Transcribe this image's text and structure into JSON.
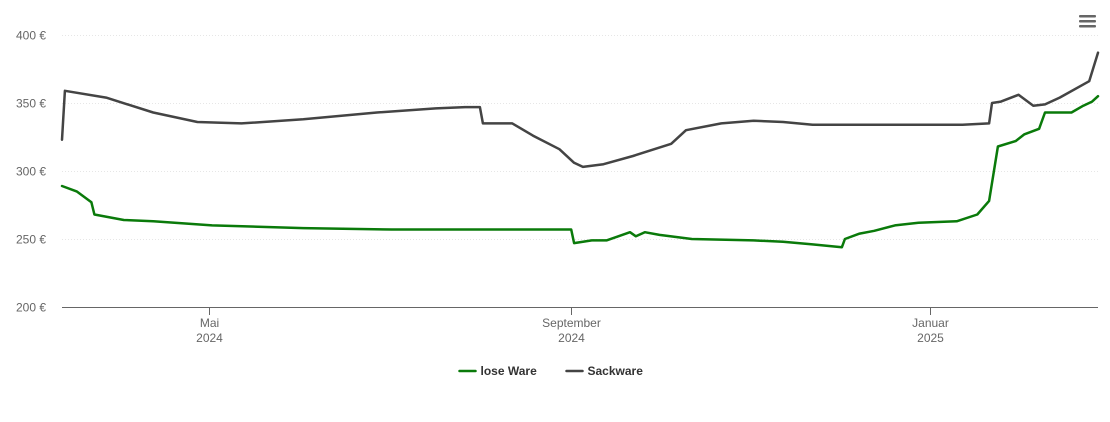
{
  "menu_icon": "hamburger-menu-icon",
  "chart_data": {
    "type": "line",
    "ylim": [
      200,
      400
    ],
    "grid": true,
    "legend_position": "bottom-center",
    "y_ticks": [
      {
        "value": 200,
        "label": "200 €"
      },
      {
        "value": 250,
        "label": "250 €"
      },
      {
        "value": 300,
        "label": "300 €"
      },
      {
        "value": 350,
        "label": "350 €"
      },
      {
        "value": 400,
        "label": "400 €"
      }
    ],
    "x_range": [
      "2024-03-12",
      "2025-02-27"
    ],
    "x_ticks": [
      {
        "date": "2024-05-01",
        "line1": "Mai",
        "line2": "2024"
      },
      {
        "date": "2024-09-01",
        "line1": "September",
        "line2": "2024"
      },
      {
        "date": "2025-01-01",
        "line1": "Januar",
        "line2": "2025"
      }
    ],
    "series": [
      {
        "name": "lose Ware",
        "color": "#0a7a0a",
        "points": [
          [
            "2024-03-12",
            289
          ],
          [
            "2024-03-17",
            285
          ],
          [
            "2024-03-22",
            277
          ],
          [
            "2024-03-23",
            268
          ],
          [
            "2024-04-02",
            264
          ],
          [
            "2024-04-12",
            263
          ],
          [
            "2024-05-02",
            260
          ],
          [
            "2024-06-02",
            258
          ],
          [
            "2024-07-02",
            257
          ],
          [
            "2024-08-02",
            257
          ],
          [
            "2024-09-01",
            257
          ],
          [
            "2024-09-02",
            247
          ],
          [
            "2024-09-08",
            249
          ],
          [
            "2024-09-13",
            249
          ],
          [
            "2024-09-17",
            252
          ],
          [
            "2024-09-21",
            255
          ],
          [
            "2024-09-23",
            252
          ],
          [
            "2024-09-26",
            255
          ],
          [
            "2024-10-01",
            253
          ],
          [
            "2024-10-12",
            250
          ],
          [
            "2024-11-02",
            249
          ],
          [
            "2024-11-12",
            248
          ],
          [
            "2024-11-22",
            246
          ],
          [
            "2024-12-02",
            244
          ],
          [
            "2024-12-03",
            250
          ],
          [
            "2024-12-08",
            254
          ],
          [
            "2024-12-13",
            256
          ],
          [
            "2024-12-20",
            260
          ],
          [
            "2024-12-28",
            262
          ],
          [
            "2025-01-10",
            263
          ],
          [
            "2025-01-17",
            268
          ],
          [
            "2025-01-21",
            278
          ],
          [
            "2025-01-24",
            318
          ],
          [
            "2025-01-30",
            322
          ],
          [
            "2025-02-02",
            327
          ],
          [
            "2025-02-07",
            331
          ],
          [
            "2025-02-09",
            343
          ],
          [
            "2025-02-18",
            343
          ],
          [
            "2025-02-22",
            348
          ],
          [
            "2025-02-25",
            351
          ],
          [
            "2025-02-27",
            355
          ]
        ]
      },
      {
        "name": "Sackware",
        "color": "#444444",
        "points": [
          [
            "2024-03-12",
            323
          ],
          [
            "2024-03-13",
            359
          ],
          [
            "2024-03-27",
            354
          ],
          [
            "2024-04-12",
            343
          ],
          [
            "2024-04-27",
            336
          ],
          [
            "2024-05-12",
            335
          ],
          [
            "2024-06-02",
            338
          ],
          [
            "2024-06-27",
            343
          ],
          [
            "2024-07-17",
            346
          ],
          [
            "2024-07-27",
            347
          ],
          [
            "2024-08-01",
            347
          ],
          [
            "2024-08-02",
            335
          ],
          [
            "2024-08-12",
            335
          ],
          [
            "2024-08-19",
            326
          ],
          [
            "2024-08-28",
            316
          ],
          [
            "2024-09-02",
            306
          ],
          [
            "2024-09-05",
            303
          ],
          [
            "2024-09-12",
            305
          ],
          [
            "2024-09-22",
            311
          ],
          [
            "2024-10-05",
            320
          ],
          [
            "2024-10-10",
            330
          ],
          [
            "2024-10-22",
            335
          ],
          [
            "2024-11-02",
            337
          ],
          [
            "2024-11-12",
            336
          ],
          [
            "2024-11-22",
            334
          ],
          [
            "2024-12-22",
            334
          ],
          [
            "2025-01-12",
            334
          ],
          [
            "2025-01-21",
            335
          ],
          [
            "2025-01-22",
            350
          ],
          [
            "2025-01-25",
            351
          ],
          [
            "2025-01-31",
            356
          ],
          [
            "2025-02-05",
            348
          ],
          [
            "2025-02-09",
            349
          ],
          [
            "2025-02-14",
            354
          ],
          [
            "2025-02-24",
            366
          ],
          [
            "2025-02-27",
            387
          ]
        ]
      }
    ]
  }
}
